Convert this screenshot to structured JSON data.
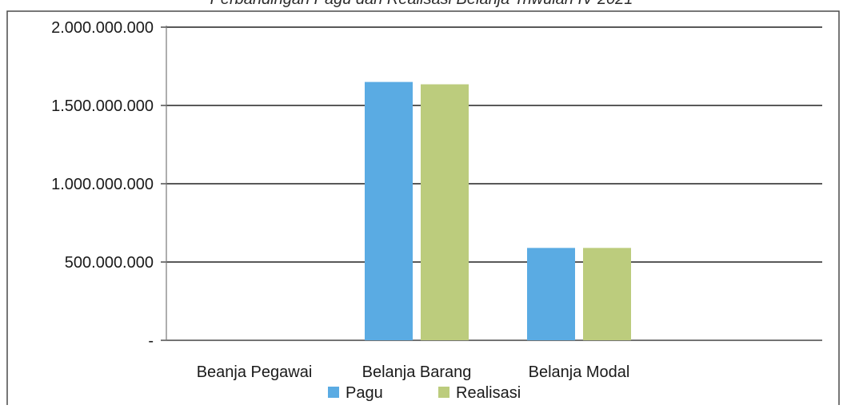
{
  "chart_data": {
    "type": "bar",
    "title": "Perbandingan Pagu dan Realisasi Belanja Triwulan IV 2021",
    "categories": [
      "Beanja Pegawai",
      "Belanja Barang",
      "Belanja Modal"
    ],
    "series": [
      {
        "name": "Pagu",
        "values": [
          0,
          1650000000,
          590000000
        ],
        "color": "#5aabe3"
      },
      {
        "name": "Realisasi",
        "values": [
          0,
          1635000000,
          590000000
        ],
        "color": "#bccc7d"
      }
    ],
    "yticks": [
      "-",
      "500.000.000",
      "1.000.000.000",
      "1.500.000.000",
      "2.000.000.000"
    ],
    "ylim": [
      0,
      2000000000
    ],
    "xlabel": "",
    "ylabel": "",
    "grid": true,
    "legend": "bottom"
  }
}
